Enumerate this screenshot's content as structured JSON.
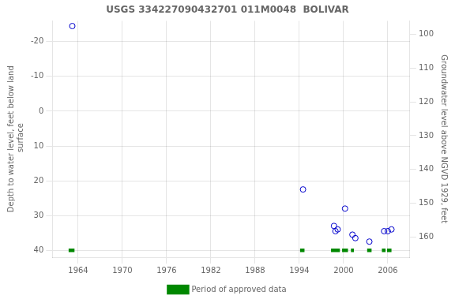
{
  "chart_data": {
    "type": "scatter",
    "title": "USGS 334227090432701 011M0048  BOLIVAR",
    "y_label": "Depth to water level, feet below land\n surface",
    "y2_label": "Groundwater level above NGVD 1929, feet",
    "x": [
      1963.2,
      1994.5,
      1998.7,
      1998.9,
      1999.2,
      2000.2,
      2001.2,
      2001.6,
      2003.5,
      2005.5,
      2006.0,
      2006.5
    ],
    "series": [
      {
        "color": "#0000cc",
        "marker": "open_circle",
        "values": [
          -24.5,
          22.5,
          33.0,
          34.5,
          34.0,
          28.0,
          35.5,
          36.5,
          37.5,
          34.5,
          34.5,
          34.0
        ]
      },
      {
        "name": "Period of approved data",
        "type": "segment",
        "color": "#008800",
        "y": 40.0,
        "segments": [
          [
            1962.7,
            1963.5
          ],
          [
            1994.1,
            1994.7
          ],
          [
            1998.3,
            1999.5
          ],
          [
            1999.8,
            2000.6
          ],
          [
            2001.0,
            2001.4
          ],
          [
            2003.2,
            2003.8
          ],
          [
            2005.2,
            2005.7
          ],
          [
            2005.9,
            2006.5
          ]
        ]
      }
    ],
    "xlim": [
      1960.5,
      2009
    ],
    "xticks": [
      1964,
      1970,
      1976,
      1982,
      1988,
      1994,
      2000,
      2006
    ],
    "ylim": [
      42,
      -26
    ],
    "yticks": [
      -20,
      -10,
      0,
      10,
      20,
      30,
      40
    ],
    "y2lim": [
      166,
      96
    ],
    "y2ticks": [
      100,
      110,
      120,
      130,
      140,
      150,
      160
    ],
    "grid": true,
    "legend": "bottom"
  }
}
